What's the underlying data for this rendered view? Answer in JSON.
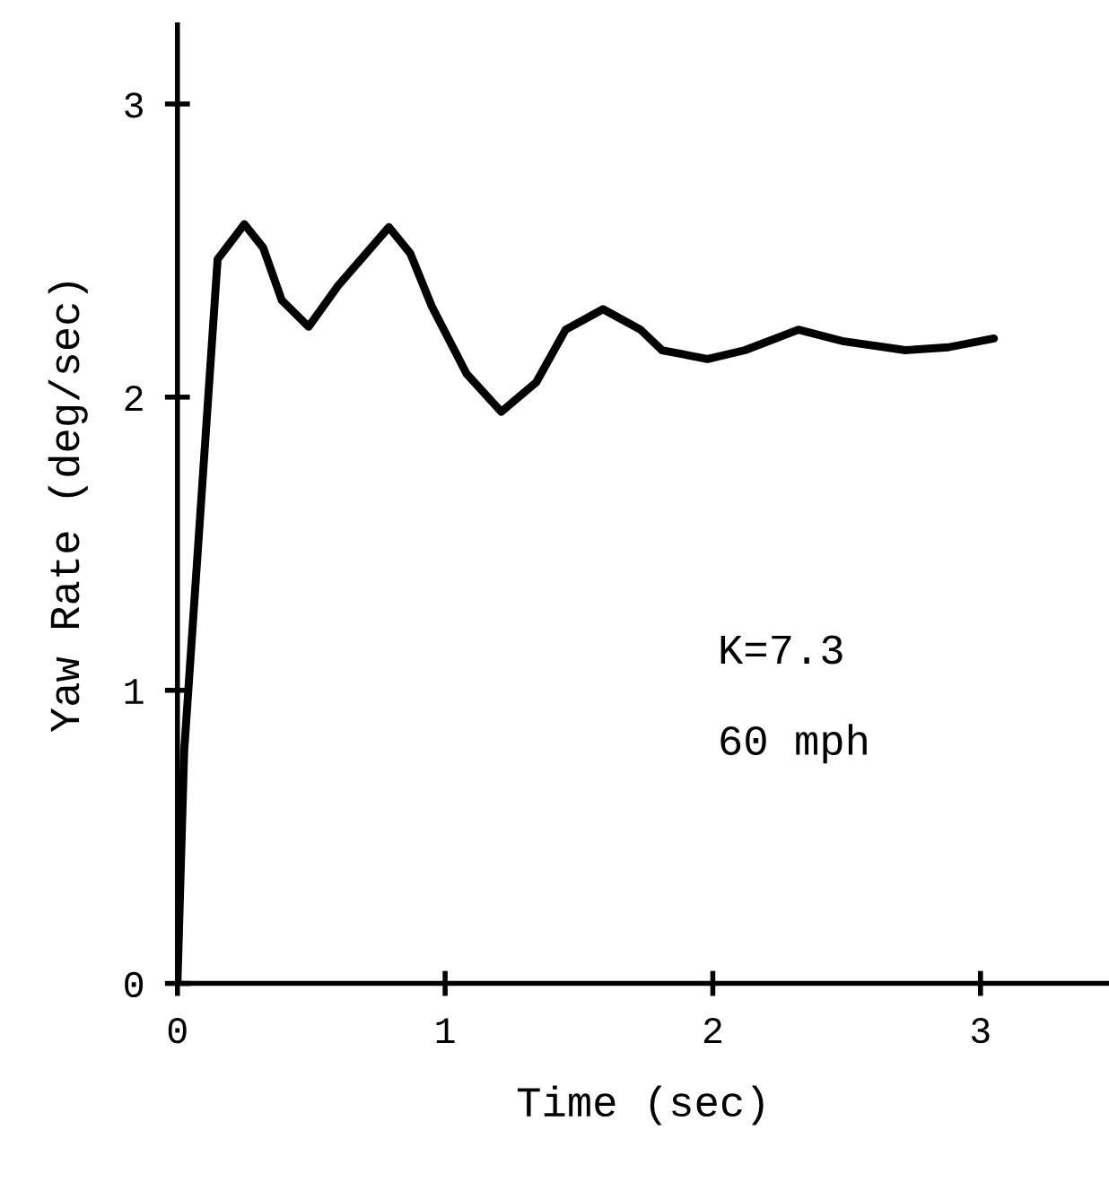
{
  "chart_data": {
    "type": "line",
    "xlabel": "Time (sec)",
    "ylabel": "Yaw Rate (deg/sec)",
    "annotations": [
      "K=7.3",
      "60 mph"
    ],
    "x": [
      0,
      0.025,
      0.15,
      0.25,
      0.32,
      0.39,
      0.49,
      0.6,
      0.79,
      0.87,
      0.95,
      1.08,
      1.21,
      1.34,
      1.45,
      1.59,
      1.73,
      1.81,
      1.98,
      2.12,
      2.32,
      2.49,
      2.72,
      2.88,
      3.05
    ],
    "series": [
      {
        "color": "#000000",
        "values": [
          0,
          0.79,
          2.47,
          2.59,
          2.51,
          2.33,
          2.24,
          2.38,
          2.58,
          2.49,
          2.31,
          2.08,
          1.95,
          2.05,
          2.23,
          2.3,
          2.23,
          2.16,
          2.13,
          2.16,
          2.23,
          2.19,
          2.16,
          2.17,
          2.2
        ]
      }
    ],
    "xlim": [
      0,
      3.48
    ],
    "ylim": [
      0,
      3.27
    ],
    "xticks": [
      0,
      1,
      2,
      3
    ],
    "yticks": [
      0,
      1,
      2,
      3
    ],
    "grid": false,
    "legend": false,
    "marker": "none",
    "line_style": "solid"
  }
}
